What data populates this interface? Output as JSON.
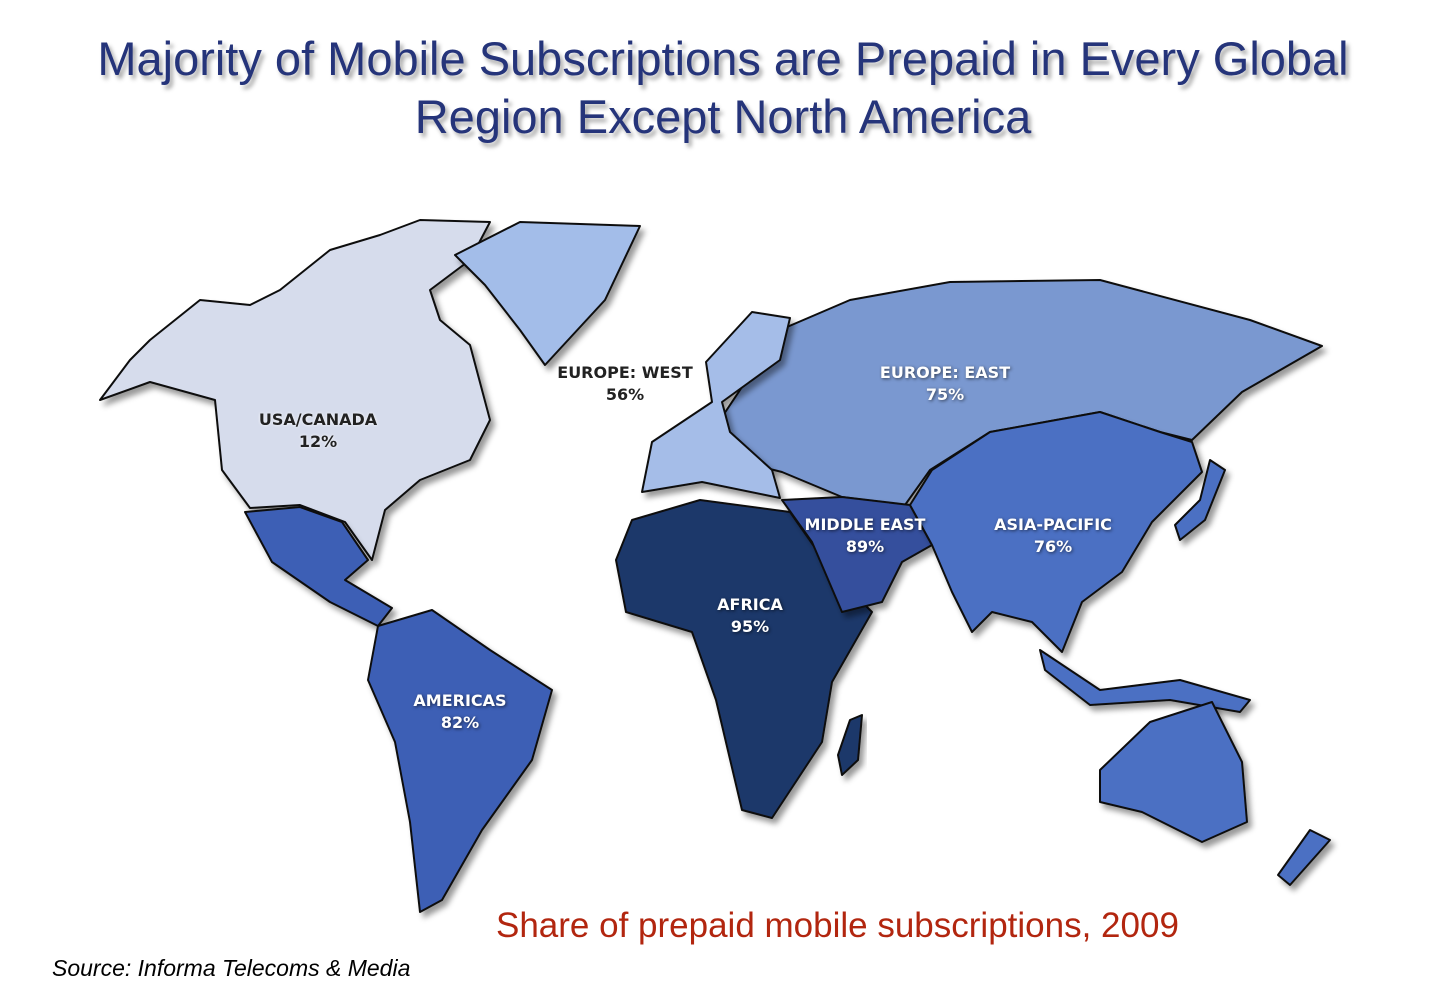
{
  "title_line1": "Majority of Mobile Subscriptions are Prepaid in Every Global",
  "title_line2": "Region Except North America",
  "subtitle": "Share of prepaid mobile subscriptions, 2009",
  "source": "Source: Informa Telecoms & Media",
  "regions": [
    {
      "name": "USA/CANADA",
      "value": "12%",
      "color": "#d6dcec"
    },
    {
      "name": "EUROPE: WEST",
      "value": "56%",
      "color": "#a5bde8"
    },
    {
      "name": "EUROPE: EAST",
      "value": "75%",
      "color": "#7a98d0"
    },
    {
      "name": "MIDDLE EAST",
      "value": "89%",
      "color": "#34509d"
    },
    {
      "name": "ASIA-PACIFIC",
      "value": "76%",
      "color": "#4b70c3"
    },
    {
      "name": "AFRICA",
      "value": "95%",
      "color": "#1f376b"
    },
    {
      "name": "AMERICAS",
      "value": "82%",
      "color": "#3d5fb5"
    }
  ]
}
